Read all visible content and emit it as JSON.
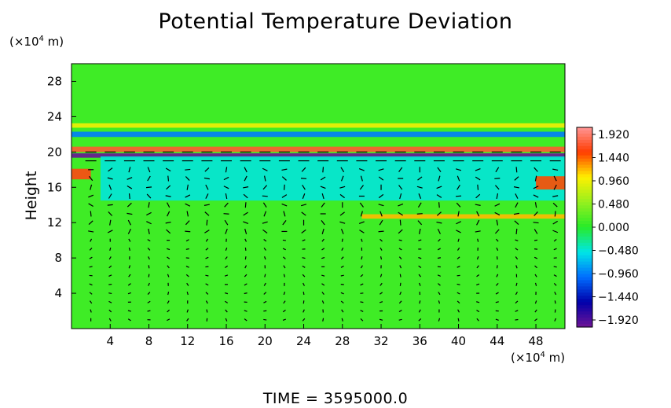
{
  "chart_data": {
    "type": "heatmap",
    "title": "Potential Temperature Deviation",
    "ylabel": "Height",
    "x_unit_prefix": "(×10",
    "x_unit_exp": "4",
    "x_unit_suffix": " m)",
    "y_unit_prefix": "(×10",
    "y_unit_exp": "4",
    "y_unit_suffix": " m)",
    "xlim": [
      0,
      51
    ],
    "ylim": [
      0,
      30
    ],
    "x_ticks": [
      4,
      8,
      12,
      16,
      20,
      24,
      28,
      32,
      36,
      40,
      44,
      48
    ],
    "y_ticks": [
      4,
      8,
      12,
      16,
      20,
      24,
      28
    ],
    "colorbar": {
      "ticks": [
        1.92,
        1.44,
        0.96,
        0.48,
        0.0,
        -0.48,
        -0.96,
        -1.44,
        -1.92
      ],
      "tick_labels": [
        "1.920",
        "1.440",
        "0.960",
        "0.480",
        "0.000",
        "−0.480",
        "−0.960",
        "−1.440",
        "−1.920"
      ],
      "range": [
        -1.92,
        1.92
      ]
    },
    "background_value": 0.1,
    "features": [
      {
        "name": "tropopause-positive-band",
        "x_range": [
          0,
          51
        ],
        "y_center": 20.3,
        "thickness": 0.6,
        "value": 1.6
      },
      {
        "name": "tropopause-negative-band",
        "x_range": [
          0,
          51
        ],
        "y_center": 19.6,
        "thickness": 0.5,
        "value": -1.9
      },
      {
        "name": "upper-wave-cyan",
        "x_range": [
          0,
          51
        ],
        "y_center": 22.0,
        "thickness": 0.6,
        "value": -0.9
      },
      {
        "name": "upper-wave-yellow",
        "x_range": [
          0,
          51
        ],
        "y_center": 23.0,
        "thickness": 0.5,
        "value": 0.9
      },
      {
        "name": "lower-cool-layer",
        "x_range": [
          3,
          51
        ],
        "y_center": 17.0,
        "thickness": 5.0,
        "value": -0.45
      },
      {
        "name": "convective-warm-line",
        "x_range": [
          30,
          51
        ],
        "y_center": 12.7,
        "thickness": 0.5,
        "value": 1.1
      },
      {
        "name": "left-warm-patch",
        "x_range": [
          0,
          2
        ],
        "y_center": 17.5,
        "thickness": 1.2,
        "value": 1.5
      },
      {
        "name": "right-warm-patch",
        "x_range": [
          48,
          51
        ],
        "y_center": 16.5,
        "thickness": 1.5,
        "value": 1.4
      }
    ],
    "wind_arrows": {
      "columns_x": [
        2,
        4,
        6,
        8,
        10,
        12,
        14,
        16,
        18,
        20,
        22,
        24,
        26,
        28,
        30,
        32,
        34,
        36,
        38,
        40,
        42,
        44,
        46,
        48,
        50
      ],
      "rows_y": [
        1,
        2,
        3,
        4,
        5,
        6,
        7,
        8,
        9,
        10,
        11,
        12,
        13,
        14,
        15,
        16,
        17,
        18,
        19,
        20
      ],
      "upper_level_flow": "eastward near 19-20 km, mixed below"
    },
    "footer": "TIME  =  3595000.0"
  }
}
